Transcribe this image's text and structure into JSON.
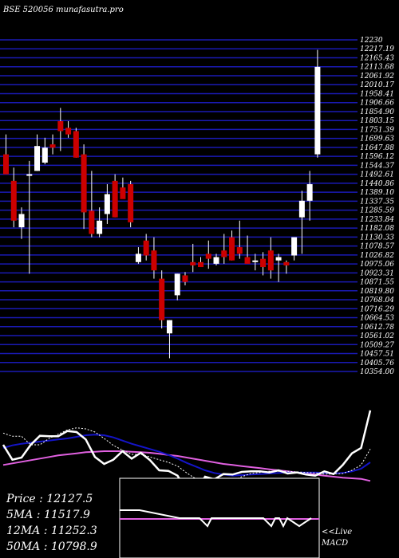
{
  "header": {
    "title": "BSE 520056  munafasutra.pro"
  },
  "colors": {
    "background": "#000000",
    "gridline": "#1a1ab4",
    "up": "#ffffff",
    "down": "#cc0000",
    "ma_fast": "#ffffff",
    "ma_mid": "#1414c8",
    "ma_slow": "#e060e0",
    "text": "#ffffff"
  },
  "legend": {
    "price": "Price   :  12127.5",
    "ma5": "5MA : 11517.9",
    "ma12": "12MA : 11252.3",
    "ma50": "50MA : 10798.9"
  },
  "macd_panel": {
    "live": "<<Live",
    "label": "MACD"
  },
  "chart_data": {
    "type": "candlestick",
    "title": "BSE 520056  munafasutra.pro",
    "ylim": [
      10300,
      12300
    ],
    "price_levels": [
      "12230",
      "12217.19",
      "12165.43",
      "12113.68",
      "12061.92",
      "12010.17",
      "11958.41",
      "11906.66",
      "11854.90",
      "11803.15",
      "11751.39",
      "11699.63",
      "11647.88",
      "11596.12",
      "11544.37",
      "11492.61",
      "11440.86",
      "11389.10",
      "11337.35",
      "11285.59",
      "11233.84",
      "11182.08",
      "11130.33",
      "11078.57",
      "11026.82",
      "10975.06",
      "10923.31",
      "10871.55",
      "10819.80",
      "10768.04",
      "10716.29",
      "10664.53",
      "10612.78",
      "10561.02",
      "10509.27",
      "10457.51",
      "10405.76",
      "10354.00"
    ],
    "candles": [
      {
        "o": 11600,
        "h": 11720,
        "l": 11480,
        "c": 11480
      },
      {
        "o": 11440,
        "h": 11520,
        "l": 11160,
        "c": 11200
      },
      {
        "o": 11160,
        "h": 11280,
        "l": 11090,
        "c": 11240
      },
      {
        "o": 11480,
        "h": 11560,
        "l": 10880,
        "c": 11480
      },
      {
        "o": 11500,
        "h": 11720,
        "l": 11500,
        "c": 11650
      },
      {
        "o": 11550,
        "h": 11700,
        "l": 11540,
        "c": 11640
      },
      {
        "o": 11660,
        "h": 11720,
        "l": 11600,
        "c": 11640
      },
      {
        "o": 11800,
        "h": 11880,
        "l": 11620,
        "c": 11740
      },
      {
        "o": 11760,
        "h": 11800,
        "l": 11700,
        "c": 11720
      },
      {
        "o": 11740,
        "h": 11760,
        "l": 11580,
        "c": 11580
      },
      {
        "o": 11600,
        "h": 11660,
        "l": 11150,
        "c": 11250
      },
      {
        "o": 11260,
        "h": 11500,
        "l": 11100,
        "c": 11120
      },
      {
        "o": 11120,
        "h": 11280,
        "l": 11100,
        "c": 11200
      },
      {
        "o": 11240,
        "h": 11420,
        "l": 11180,
        "c": 11360
      },
      {
        "o": 11440,
        "h": 11480,
        "l": 11220,
        "c": 11220
      },
      {
        "o": 11400,
        "h": 11460,
        "l": 11350,
        "c": 11330
      },
      {
        "o": 11420,
        "h": 11440,
        "l": 11160,
        "c": 11190
      },
      {
        "o": 10950,
        "h": 11040,
        "l": 10940,
        "c": 11000
      },
      {
        "o": 11080,
        "h": 11120,
        "l": 10960,
        "c": 10990
      },
      {
        "o": 11020,
        "h": 11100,
        "l": 10850,
        "c": 10900
      },
      {
        "o": 10850,
        "h": 10900,
        "l": 10550,
        "c": 10600
      },
      {
        "o": 10520,
        "h": 10600,
        "l": 10370,
        "c": 10600
      },
      {
        "o": 10750,
        "h": 10880,
        "l": 10720,
        "c": 10880
      },
      {
        "o": 10870,
        "h": 10890,
        "l": 10810,
        "c": 10830
      },
      {
        "o": 10950,
        "h": 11060,
        "l": 10890,
        "c": 10930
      },
      {
        "o": 10950,
        "h": 10980,
        "l": 10920,
        "c": 10920
      },
      {
        "o": 11000,
        "h": 11080,
        "l": 10910,
        "c": 10970
      },
      {
        "o": 10940,
        "h": 11000,
        "l": 10930,
        "c": 10980
      },
      {
        "o": 11020,
        "h": 11120,
        "l": 10940,
        "c": 10980
      },
      {
        "o": 11100,
        "h": 11140,
        "l": 10960,
        "c": 10960
      },
      {
        "o": 11040,
        "h": 11200,
        "l": 10970,
        "c": 11000
      },
      {
        "o": 10980,
        "h": 11110,
        "l": 10950,
        "c": 10940
      },
      {
        "o": 10950,
        "h": 11000,
        "l": 10900,
        "c": 10960
      },
      {
        "o": 10970,
        "h": 11010,
        "l": 10870,
        "c": 10920
      },
      {
        "o": 11020,
        "h": 11100,
        "l": 10850,
        "c": 10900
      },
      {
        "o": 10960,
        "h": 11000,
        "l": 10830,
        "c": 10980
      },
      {
        "o": 10950,
        "h": 10960,
        "l": 10880,
        "c": 10930
      },
      {
        "o": 10990,
        "h": 11080,
        "l": 10960,
        "c": 11100
      },
      {
        "o": 11220,
        "h": 11380,
        "l": 11000,
        "c": 11320
      },
      {
        "o": 11320,
        "h": 11500,
        "l": 11200,
        "c": 11420
      },
      {
        "o": 11600,
        "h": 12230,
        "l": 11580,
        "c": 12127.5
      }
    ],
    "ma5": [
      11700,
      11640,
      11640,
      11480,
      11480,
      11600,
      11680,
      11760,
      11800,
      11780,
      11720,
      11600,
      11470,
      11380,
      11300,
      11300,
      11250,
      11200,
      11150,
      11080,
      10950,
      10840,
      10740,
      10700,
      10720,
      10800,
      10880,
      10940,
      10960,
      10980,
      10980,
      10980,
      10970,
      10960,
      10950,
      10930,
      10930,
      10940,
      11000,
      11100,
      11400
    ],
    "ma12": [
      11420,
      11470,
      11500,
      11520,
      11540,
      11560,
      11580,
      11600,
      11630,
      11660,
      11670,
      11660,
      11620,
      11560,
      11500,
      11450,
      11400,
      11350,
      11290,
      11220,
      11140,
      11070,
      11000,
      10950,
      10920,
      10900,
      10910,
      10920,
      10930,
      10940,
      10950,
      10960,
      10960,
      10960,
      10960,
      10950,
      10940,
      10950,
      10980,
      11030,
      11150
    ],
    "ma50": [
      11100,
      11130,
      11160,
      11190,
      11220,
      11250,
      11280,
      11300,
      11320,
      11340,
      11350,
      11360,
      11360,
      11360,
      11350,
      11340,
      11330,
      11310,
      11290,
      11270,
      11240,
      11210,
      11180,
      11150,
      11120,
      11100,
      11080,
      11060,
      11040,
      11020,
      11000,
      10980,
      10960,
      10940,
      10920,
      10900,
      10880,
      10860,
      10850,
      10840,
      10800
    ]
  }
}
